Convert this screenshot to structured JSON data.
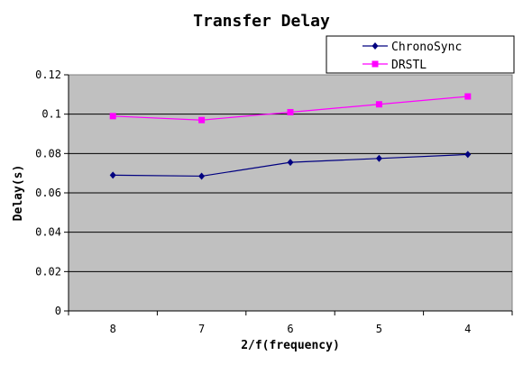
{
  "chart_data": {
    "type": "line",
    "title": "Transfer Delay",
    "xlabel": "2/f(frequency)",
    "ylabel": "Delay(s)",
    "categories": [
      "8",
      "7",
      "6",
      "5",
      "4"
    ],
    "ylim": [
      0,
      0.12
    ],
    "yticks": [
      0,
      0.02,
      0.04,
      0.06,
      0.08,
      0.1,
      0.12
    ],
    "ytick_labels": [
      "0",
      "0.02",
      "0.04",
      "0.06",
      "0.08",
      "0.1",
      "0.12"
    ],
    "grid": true,
    "legend_position": "top-right",
    "plot_background": "#c0c0c0",
    "series": [
      {
        "name": "ChronoSync",
        "values": [
          0.069,
          0.0685,
          0.0755,
          0.0775,
          0.0795
        ],
        "color": "#000080",
        "marker": "diamond"
      },
      {
        "name": "DRSTL",
        "values": [
          0.099,
          0.097,
          0.101,
          0.105,
          0.109
        ],
        "color": "#ff00ff",
        "marker": "square"
      }
    ]
  }
}
